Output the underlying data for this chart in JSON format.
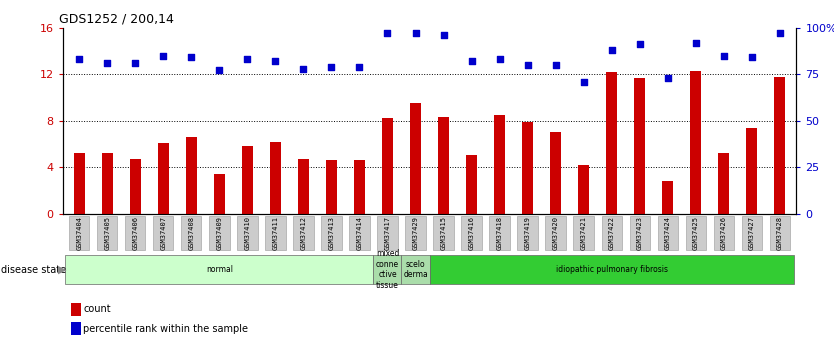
{
  "title": "GDS1252 / 200,14",
  "samples": [
    "GSM37404",
    "GSM37405",
    "GSM37406",
    "GSM37407",
    "GSM37408",
    "GSM37409",
    "GSM37410",
    "GSM37411",
    "GSM37412",
    "GSM37413",
    "GSM37414",
    "GSM37417",
    "GSM37429",
    "GSM37415",
    "GSM37416",
    "GSM37418",
    "GSM37419",
    "GSM37420",
    "GSM37421",
    "GSM37422",
    "GSM37423",
    "GSM37424",
    "GSM37425",
    "GSM37426",
    "GSM37427",
    "GSM37428"
  ],
  "counts": [
    5.2,
    5.2,
    4.7,
    6.1,
    6.6,
    3.4,
    5.8,
    6.2,
    4.7,
    4.6,
    4.6,
    8.2,
    9.5,
    8.3,
    5.1,
    8.5,
    7.9,
    7.0,
    4.2,
    12.2,
    11.7,
    2.8,
    12.3,
    5.2,
    7.4,
    11.8
  ],
  "percentiles": [
    83,
    81,
    81,
    85,
    84,
    77,
    83,
    82,
    78,
    79,
    79,
    97,
    97,
    96,
    82,
    83,
    80,
    80,
    71,
    88,
    91,
    73,
    92,
    85,
    84,
    97
  ],
  "groups": [
    {
      "label": "normal",
      "start": 0,
      "end": 11,
      "color": "#ccffcc"
    },
    {
      "label": "mixed\nconne\nctive\ntissue",
      "start": 11,
      "end": 12,
      "color": "#aaddaa"
    },
    {
      "label": "scelo\nderma",
      "start": 12,
      "end": 13,
      "color": "#aaddaa"
    },
    {
      "label": "idiopathic pulmonary fibrosis",
      "start": 13,
      "end": 26,
      "color": "#33cc33"
    }
  ],
  "ylim_left": [
    0,
    16
  ],
  "ylim_right": [
    0,
    100
  ],
  "bar_color": "#cc0000",
  "dot_color": "#0000cc",
  "yticks_left": [
    0,
    4,
    8,
    12,
    16
  ],
  "yticks_right": [
    0,
    25,
    50,
    75,
    100
  ],
  "ytick_labels_right": [
    "0",
    "25",
    "50",
    "75",
    "100%"
  ],
  "legend_items": [
    {
      "label": "count",
      "color": "#cc0000"
    },
    {
      "label": "percentile rank within the sample",
      "color": "#0000cc"
    }
  ]
}
